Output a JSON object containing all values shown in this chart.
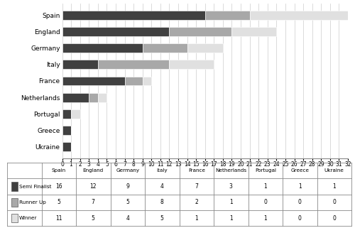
{
  "countries": [
    "Ukraine",
    "Greece",
    "Portugal",
    "Netherlands",
    "France",
    "Italy",
    "Germany",
    "England",
    "Spain"
  ],
  "semi_finalist": [
    1,
    1,
    1,
    3,
    7,
    4,
    9,
    12,
    16
  ],
  "runner_up": [
    0,
    0,
    0,
    1,
    2,
    8,
    5,
    7,
    5
  ],
  "winner": [
    0,
    0,
    1,
    1,
    1,
    5,
    4,
    5,
    11
  ],
  "color_semi": "#404040",
  "color_runner": "#a8a8a8",
  "color_winner": "#e0e0e0",
  "xlim": [
    0,
    32
  ],
  "xticks": [
    0,
    1,
    2,
    3,
    4,
    5,
    6,
    7,
    8,
    9,
    10,
    11,
    12,
    13,
    14,
    15,
    16,
    17,
    18,
    19,
    20,
    21,
    22,
    23,
    24,
    25,
    26,
    27,
    28,
    29,
    30,
    31,
    32
  ],
  "table_countries": [
    "Spain",
    "England",
    "Germany",
    "Italy",
    "France",
    "Netherlands",
    "Portugal",
    "Greece",
    "Ukraine"
  ],
  "row_labels": [
    "Semi Finalist",
    "Runner Up",
    "Winner"
  ],
  "table_semi": [
    16,
    12,
    9,
    4,
    7,
    3,
    1,
    1,
    1
  ],
  "table_runner": [
    5,
    7,
    5,
    8,
    2,
    1,
    0,
    0,
    0
  ],
  "table_winner": [
    11,
    5,
    4,
    5,
    1,
    1,
    1,
    0,
    0
  ]
}
